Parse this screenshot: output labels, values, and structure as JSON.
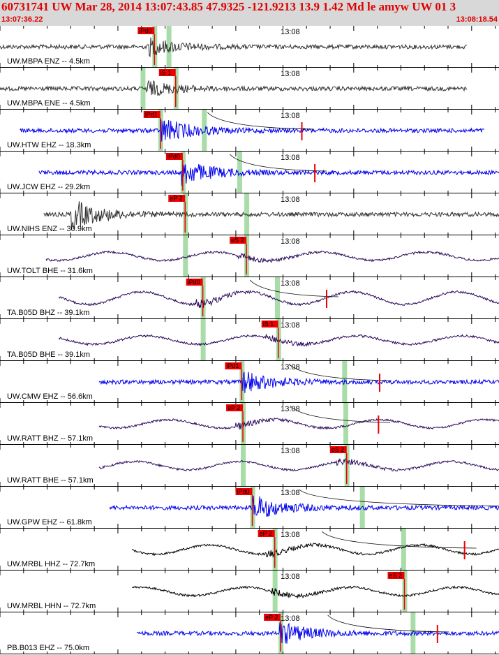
{
  "header": {
    "title": "60731741 UW Mar 28, 2014 13:07:43.85   47.9325 -121.9213 13.9 1.42 Md le amyw UW 01   3",
    "time_start": "13:07:36.22",
    "time_end": "13:08:18.54"
  },
  "tick_label": "13:08",
  "colors": {
    "blue": "#0000ee",
    "gray": "#333333",
    "purple": "#2a0a5a",
    "black": "#000000",
    "pick": "#ee0000",
    "band": "#a8dca8"
  },
  "traces": [
    {
      "label": "UW.MBPA ENZ -- 4.5km",
      "color": "gray",
      "pick": "iPd0",
      "pick_time": 13.1,
      "band_time": 14.3,
      "start": 0,
      "end": 39.6,
      "onset": 12.5,
      "style": "noise",
      "amp": 0.35
    },
    {
      "label": "UW.MBPA ENE -- 4.5km",
      "color": "gray",
      "pick": "iS 1",
      "pick_time": 14.9,
      "band_time": 12.1,
      "start": 0,
      "end": 39.6,
      "onset": 12.4,
      "style": "noise",
      "amp": 0.3
    },
    {
      "label": "UW.HTW EHZ -- 18.3km",
      "color": "blue",
      "pick": "iPd1",
      "pick_time": 13.6,
      "band_time": 17.3,
      "start": 1.7,
      "end": 41.1,
      "onset": 13.6,
      "style": "noise",
      "amp": 0.5,
      "tick": 25.6
    },
    {
      "label": "UW.JCW EHZ -- 29.2km",
      "color": "blue",
      "pick": "iPd0",
      "pick_time": 15.5,
      "band_time": 20.3,
      "start": 3.3,
      "end": 42.9,
      "onset": 15.4,
      "style": "noise",
      "amp": 0.5,
      "tick": 26.7
    },
    {
      "label": "UW.NIHS ENZ -- 30.9km",
      "color": "gray",
      "pick": "eP 2",
      "pick_time": 15.7,
      "band_time": 20.9,
      "start": 3.7,
      "end": 43.3,
      "onset": 6,
      "style": "noise",
      "amp": 0.6
    },
    {
      "label": "UW.TOLT BHE -- 31.6km",
      "color": "purple",
      "pick": "eS 2",
      "pick_time": 20.9,
      "band_time": 15.7,
      "start": 3.9,
      "end": 43.4,
      "onset": 20,
      "style": "wave",
      "amp": 0.5
    },
    {
      "label": "TA.B05D BHZ -- 39.1km",
      "color": "purple",
      "pick": "iPd0",
      "pick_time": 17.2,
      "band_time": 23.5,
      "start": 5,
      "end": 44.6,
      "onset": 16.5,
      "style": "wave",
      "amp": 0.75,
      "tick": 27.7
    },
    {
      "label": "TA.B05D BHE -- 39.1km",
      "color": "purple",
      "pick": "iS 1",
      "pick_time": 23.6,
      "band_time": 17.2,
      "start": 5,
      "end": 44.6,
      "onset": 22.5,
      "style": "wave",
      "amp": 0.5
    },
    {
      "label": "UW.CMW EHZ -- 56.6km",
      "color": "blue",
      "pick": "iPd1",
      "pick_time": 20.5,
      "band_time": 29.2,
      "start": 8.4,
      "end": 47.7,
      "onset": 20.5,
      "style": "noise",
      "amp": 0.45,
      "tick": 32.2
    },
    {
      "label": "UW.RATT BHZ -- 57.1km",
      "color": "purple",
      "pick": "eP 2",
      "pick_time": 20.6,
      "band_time": 29.3,
      "start": 8.4,
      "end": 47.7,
      "onset": 20,
      "style": "wave",
      "amp": 0.5,
      "tick": 32.1
    },
    {
      "label": "UW.RATT BHE -- 57.1km",
      "color": "purple",
      "pick": "eS 2",
      "pick_time": 29.4,
      "band_time": 20.6,
      "start": 8.4,
      "end": 47.7,
      "onset": 28.5,
      "style": "wave",
      "amp": 0.5
    },
    {
      "label": "UW.GPW EHZ -- 61.8km",
      "color": "blue",
      "pick": "iPd0",
      "pick_time": 21.4,
      "band_time": 30.7,
      "start": 9.3,
      "end": 48.8,
      "onset": 21.4,
      "style": "noise",
      "amp": 0.5,
      "tick": 42.8
    },
    {
      "label": "UW.MRBL HHZ -- 72.7km",
      "color": "black",
      "pick": "eP 2",
      "pick_time": 23.3,
      "band_time": 34.2,
      "start": 11.2,
      "end": 50.7,
      "onset": 22.5,
      "style": "wave",
      "amp": 0.55,
      "tick": 39.4
    },
    {
      "label": "UW.MRBL HHN -- 72.7km",
      "color": "black",
      "pick": "eS 2",
      "pick_time": 34.3,
      "band_time": 23.3,
      "start": 11.2,
      "end": 50.7,
      "onset": 23,
      "style": "wave",
      "amp": 0.5
    },
    {
      "label": "PB.B013 EHZ -- 75.0km",
      "color": "blue",
      "pick": "eP 2",
      "pick_time": 23.8,
      "band_time": 35.0,
      "start": 11.6,
      "end": 51.2,
      "onset": 23.7,
      "style": "noise",
      "amp": 0.45,
      "tick": 37.1
    }
  ]
}
